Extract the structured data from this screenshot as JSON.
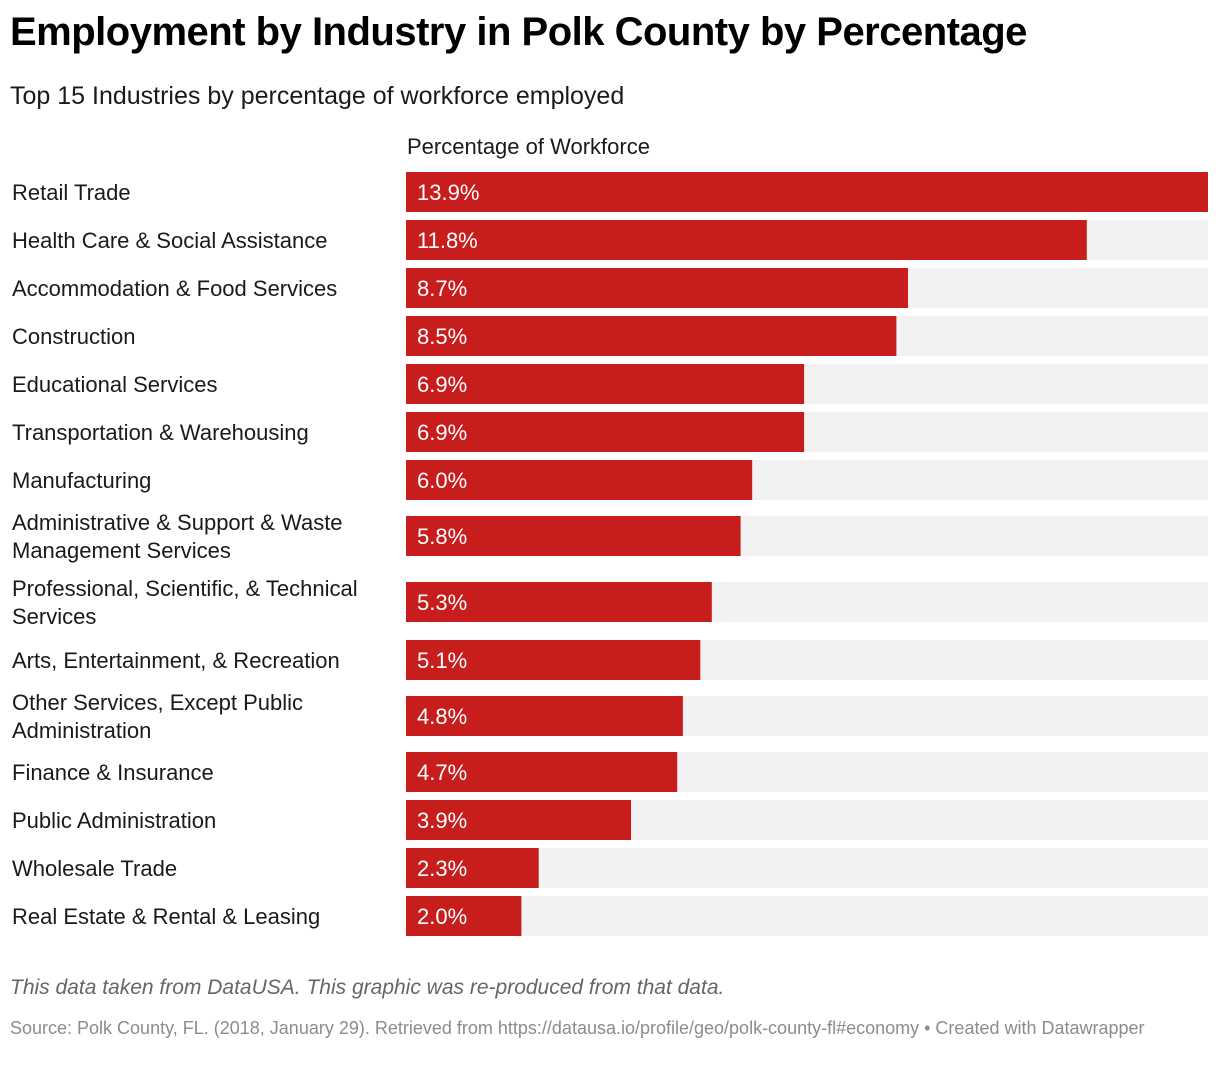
{
  "header": {
    "title": "Employment by Industry in Polk County by Percentage",
    "subtitle": "Top 15 Industries by percentage of workforce employed"
  },
  "chart_data": {
    "type": "bar",
    "orientation": "horizontal",
    "title": "Employment by Industry in Polk County by Percentage",
    "subtitle": "Top 15 Industries by percentage of workforce employed",
    "column_header": "Percentage of Workforce",
    "value_suffix": "%",
    "xlim": [
      0,
      13.9
    ],
    "bar_color": "#c71e1d",
    "track_color": "#f2f2f2",
    "categories": [
      [
        "Retail Trade"
      ],
      [
        "Health Care & Social Assistance"
      ],
      [
        "Accommodation & Food Services"
      ],
      [
        "Construction"
      ],
      [
        "Educational Services"
      ],
      [
        "Transportation & Warehousing"
      ],
      [
        "Manufacturing"
      ],
      [
        "Administrative & Support & Waste",
        "Management Services"
      ],
      [
        "Professional, Scientific, & Technical",
        "Services"
      ],
      [
        "Arts, Entertainment, & Recreation"
      ],
      [
        "Other Services, Except Public",
        "Administration"
      ],
      [
        "Finance & Insurance"
      ],
      [
        "Public Administration"
      ],
      [
        "Wholesale Trade"
      ],
      [
        "Real Estate & Rental & Leasing"
      ]
    ],
    "values": [
      13.9,
      11.8,
      8.7,
      8.5,
      6.9,
      6.9,
      6.0,
      5.8,
      5.3,
      5.1,
      4.8,
      4.7,
      3.9,
      2.3,
      2.0
    ],
    "labels": [
      "13.9%",
      "11.8%",
      "8.7%",
      "8.5%",
      "6.9%",
      "6.9%",
      "6.0%",
      "5.8%",
      "5.3%",
      "5.1%",
      "4.8%",
      "4.7%",
      "3.9%",
      "2.3%",
      "2.0%"
    ]
  },
  "footer": {
    "note": "This data taken from DataUSA. This graphic was re-produced from that data.",
    "source": "Source: Polk County, FL. (2018, January 29). Retrieved from https://datausa.io/profile/geo/polk-county-fl#economy • Created with Datawrapper"
  }
}
